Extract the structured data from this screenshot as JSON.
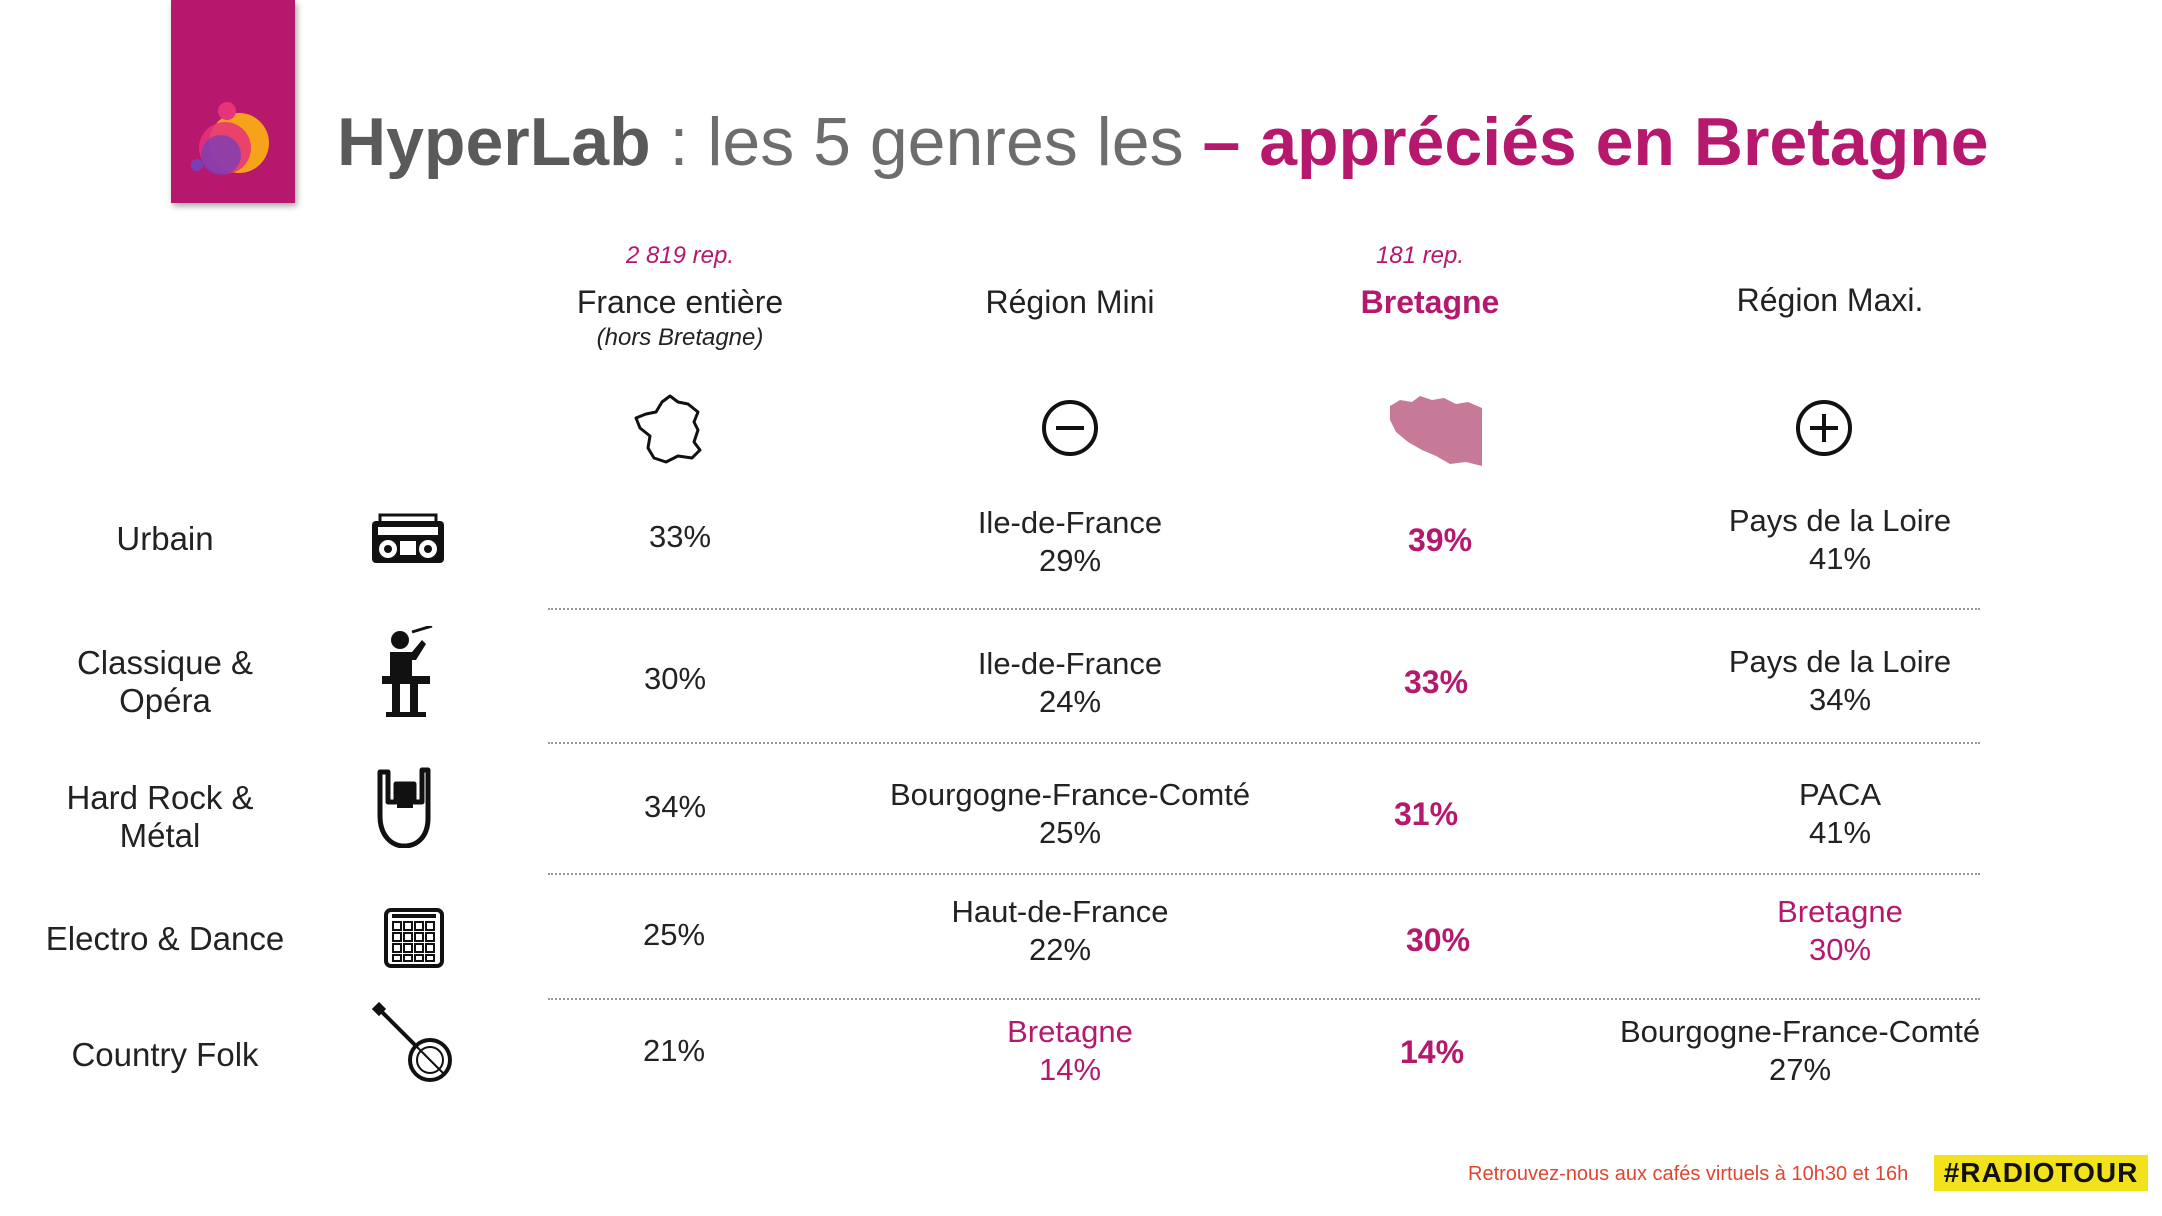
{
  "title": {
    "brand": "HyperLab",
    "separator": " : les 5 genres les ",
    "accent": "– appréciés en Bretagne"
  },
  "columns": {
    "france": {
      "rep": "2 819 rep.",
      "label": "France entière",
      "sub": "(hors Bretagne)"
    },
    "min": {
      "label": "Région Mini"
    },
    "bretagne": {
      "rep": "181 rep.",
      "label": "Bretagne"
    },
    "max": {
      "label": "Région Maxi."
    }
  },
  "rows": [
    {
      "genre": "Urbain",
      "genre2": "",
      "icon": "boombox-icon",
      "france": "33%",
      "min_region": "Ile-de-France",
      "min_value": "29%",
      "bretagne": "39%",
      "max_region": "Pays de la Loire",
      "max_value": "41%"
    },
    {
      "genre": "Classique &",
      "genre2": "Opéra",
      "icon": "conductor-icon",
      "france": "30%",
      "min_region": "Ile-de-France",
      "min_value": "24%",
      "bretagne": "33%",
      "max_region": "Pays de la Loire",
      "max_value": "34%"
    },
    {
      "genre": "Hard Rock &",
      "genre2": "Métal",
      "icon": "rock-hand-icon",
      "france": "34%",
      "min_region": "Bourgogne-France-Comté",
      "min_value": "25%",
      "bretagne": "31%",
      "max_region": "PACA",
      "max_value": "41%"
    },
    {
      "genre": "Electro & Dance",
      "genre2": "",
      "icon": "drum-pad-icon",
      "france": "25%",
      "min_region": "Haut-de-France",
      "min_value": "22%",
      "bretagne": "30%",
      "max_region": "Bretagne",
      "max_value": "30%"
    },
    {
      "genre": "Country Folk",
      "genre2": "",
      "icon": "banjo-icon",
      "france": "21%",
      "min_region": "Bretagne",
      "min_value": "14%",
      "bretagne": "14%",
      "max_region": "Bourgogne-France-Comté",
      "max_value": "27%"
    }
  ],
  "footer": {
    "note": "Retrouvez-nous aux cafés virtuels à 10h30 et 16h",
    "tag": "#RADIOTOUR"
  },
  "colors": {
    "accent": "#b5186d",
    "tag_bg": "#f2e21c",
    "footer_text": "#e0452f"
  }
}
